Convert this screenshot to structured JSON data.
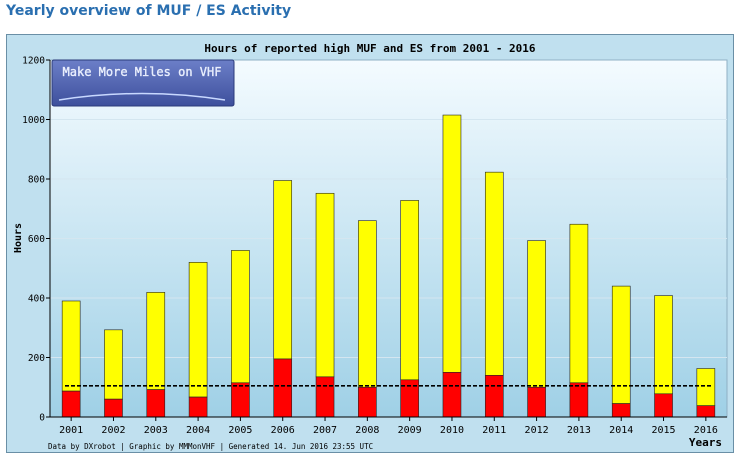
{
  "page": {
    "heading": "Yearly overview of MUF / ES Activity"
  },
  "logo": {
    "text": "Make More Miles on VHF"
  },
  "footer": {
    "credits": "Data by DXrobot  |  Graphic by MMMonVHF  |  Generated 14. Jun 2016 23:55 UTC"
  },
  "colors": {
    "es": "#ff0000",
    "muf": "#ffff00",
    "heading": "#2a6fb0"
  },
  "chart_data": {
    "type": "bar",
    "stacked": true,
    "title": "Hours of reported high MUF and ES from 2001 - 2016",
    "xlabel": "Years",
    "ylabel": "Hours",
    "ylim": [
      0,
      1200
    ],
    "yticks": [
      0,
      200,
      400,
      600,
      800,
      1000,
      1200
    ],
    "grid": true,
    "categories": [
      "2001",
      "2002",
      "2003",
      "2004",
      "2005",
      "2006",
      "2007",
      "2008",
      "2009",
      "2010",
      "2011",
      "2012",
      "2013",
      "2014",
      "2015",
      "2016"
    ],
    "series": [
      {
        "values": [
          87,
          60,
          92,
          67,
          115,
          195,
          135,
          100,
          125,
          150,
          140,
          100,
          115,
          45,
          78,
          38
        ],
        "color": "#ff0000"
      },
      {
        "values": [
          303,
          233,
          327,
          453,
          445,
          600,
          617,
          560,
          603,
          865,
          683,
          493,
          533,
          395,
          330,
          125
        ],
        "color": "#ffff00"
      }
    ],
    "reference_line": {
      "value": 105,
      "style": "dashed"
    }
  }
}
